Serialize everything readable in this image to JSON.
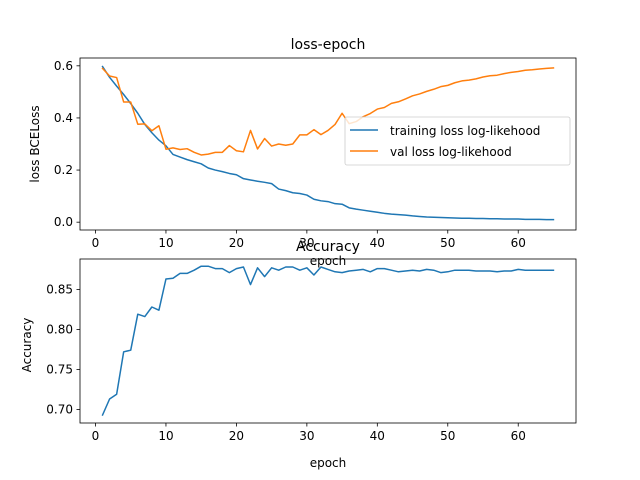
{
  "colors": {
    "training": "#1f77b4",
    "validation": "#ff7f0e",
    "accuracy": "#1f77b4"
  },
  "chart_data": [
    {
      "type": "line",
      "title": "loss-epoch",
      "xlabel": "epoch",
      "ylabel": "loss BCELoss",
      "xlim": [
        -2.2,
        68.2
      ],
      "ylim": [
        -0.03,
        0.63
      ],
      "xticks": [
        0,
        10,
        20,
        30,
        40,
        50,
        60
      ],
      "yticks": [
        0.0,
        0.2,
        0.4,
        0.6
      ],
      "ytick_labels": [
        "0.0",
        "0.2",
        "0.4",
        "0.6"
      ],
      "legend": "center-right",
      "x": [
        1,
        2,
        3,
        4,
        5,
        6,
        7,
        8,
        9,
        10,
        11,
        12,
        13,
        14,
        15,
        16,
        17,
        18,
        19,
        20,
        21,
        22,
        23,
        24,
        25,
        26,
        27,
        28,
        29,
        30,
        31,
        32,
        33,
        34,
        35,
        36,
        37,
        38,
        39,
        40,
        41,
        42,
        43,
        44,
        45,
        46,
        47,
        48,
        49,
        50,
        51,
        52,
        53,
        54,
        55,
        56,
        57,
        58,
        59,
        60,
        61,
        62,
        63,
        64,
        65
      ],
      "series": [
        {
          "name": "training loss log-likehood",
          "color": "#1f77b4",
          "values": [
            0.597,
            0.556,
            0.522,
            0.49,
            0.455,
            0.418,
            0.375,
            0.343,
            0.315,
            0.293,
            0.26,
            0.25,
            0.24,
            0.232,
            0.224,
            0.208,
            0.2,
            0.194,
            0.187,
            0.182,
            0.167,
            0.162,
            0.157,
            0.153,
            0.148,
            0.127,
            0.121,
            0.113,
            0.11,
            0.104,
            0.088,
            0.082,
            0.079,
            0.071,
            0.069,
            0.055,
            0.05,
            0.046,
            0.042,
            0.038,
            0.034,
            0.031,
            0.029,
            0.027,
            0.024,
            0.022,
            0.02,
            0.019,
            0.018,
            0.017,
            0.016,
            0.015,
            0.015,
            0.014,
            0.014,
            0.013,
            0.013,
            0.012,
            0.012,
            0.012,
            0.011,
            0.011,
            0.011,
            0.01,
            0.01
          ]
        },
        {
          "name": "val loss log-likehood",
          "color": "#ff7f0e",
          "values": [
            0.59,
            0.561,
            0.555,
            0.461,
            0.461,
            0.376,
            0.377,
            0.351,
            0.37,
            0.28,
            0.285,
            0.279,
            0.282,
            0.268,
            0.258,
            0.261,
            0.268,
            0.268,
            0.294,
            0.274,
            0.27,
            0.352,
            0.281,
            0.321,
            0.292,
            0.3,
            0.295,
            0.3,
            0.335,
            0.335,
            0.355,
            0.336,
            0.352,
            0.375,
            0.418,
            0.378,
            0.386,
            0.405,
            0.417,
            0.434,
            0.44,
            0.456,
            0.462,
            0.473,
            0.485,
            0.492,
            0.502,
            0.51,
            0.52,
            0.525,
            0.535,
            0.542,
            0.545,
            0.55,
            0.557,
            0.562,
            0.564,
            0.57,
            0.575,
            0.578,
            0.583,
            0.585,
            0.588,
            0.59,
            0.592
          ]
        }
      ]
    },
    {
      "type": "line",
      "title": "Accuracy",
      "xlabel": "epoch",
      "ylabel": "Accuracy",
      "xlim": [
        -2.2,
        68.2
      ],
      "ylim": [
        0.683,
        0.888
      ],
      "xticks": [
        0,
        10,
        20,
        30,
        40,
        50,
        60
      ],
      "yticks": [
        0.7,
        0.75,
        0.8,
        0.85
      ],
      "ytick_labels": [
        "0.70",
        "0.75",
        "0.80",
        "0.85"
      ],
      "x": [
        1,
        2,
        3,
        4,
        5,
        6,
        7,
        8,
        9,
        10,
        11,
        12,
        13,
        14,
        15,
        16,
        17,
        18,
        19,
        20,
        21,
        22,
        23,
        24,
        25,
        26,
        27,
        28,
        29,
        30,
        31,
        32,
        33,
        34,
        35,
        36,
        37,
        38,
        39,
        40,
        41,
        42,
        43,
        44,
        45,
        46,
        47,
        48,
        49,
        50,
        51,
        52,
        53,
        54,
        55,
        56,
        57,
        58,
        59,
        60,
        61,
        62,
        63,
        64,
        65
      ],
      "series": [
        {
          "color": "#1f77b4",
          "values": [
            0.693,
            0.713,
            0.719,
            0.772,
            0.774,
            0.819,
            0.816,
            0.828,
            0.824,
            0.863,
            0.864,
            0.87,
            0.87,
            0.874,
            0.879,
            0.879,
            0.876,
            0.876,
            0.871,
            0.876,
            0.878,
            0.856,
            0.877,
            0.866,
            0.877,
            0.874,
            0.878,
            0.878,
            0.874,
            0.877,
            0.868,
            0.878,
            0.875,
            0.872,
            0.871,
            0.873,
            0.874,
            0.875,
            0.872,
            0.876,
            0.876,
            0.874,
            0.872,
            0.873,
            0.874,
            0.873,
            0.875,
            0.874,
            0.871,
            0.872,
            0.874,
            0.874,
            0.874,
            0.873,
            0.873,
            0.873,
            0.872,
            0.873,
            0.873,
            0.875,
            0.874,
            0.874,
            0.874,
            0.874,
            0.874
          ]
        }
      ]
    }
  ]
}
